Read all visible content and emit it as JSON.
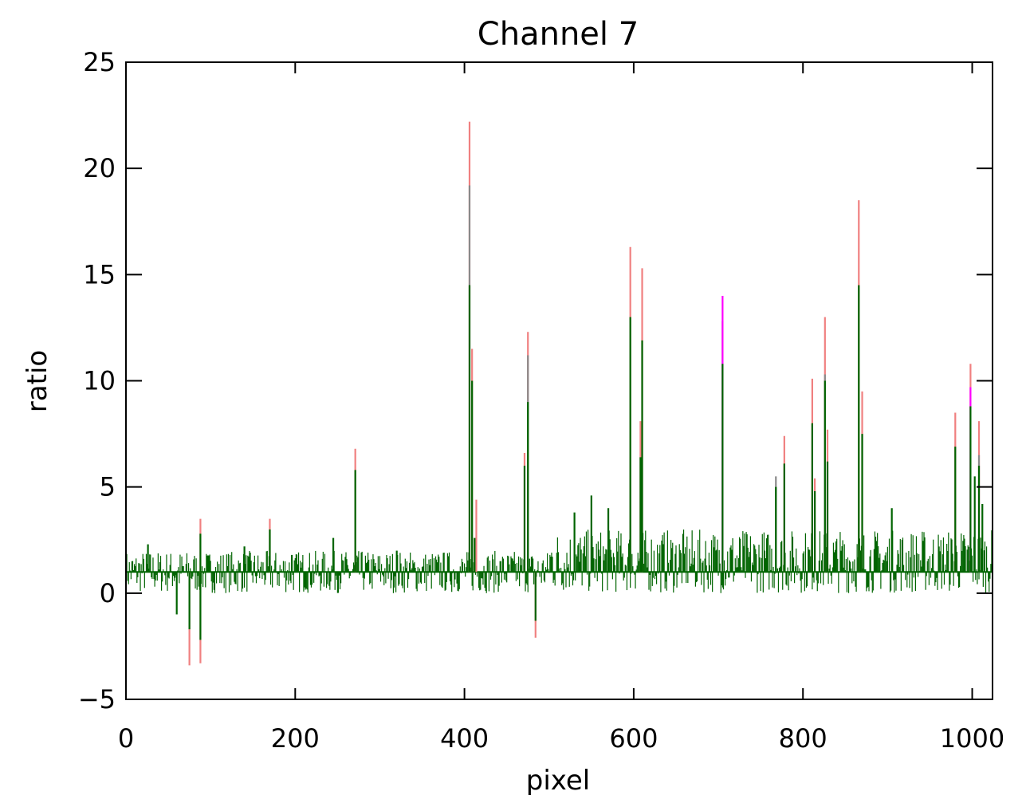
{
  "chart_data": {
    "type": "line",
    "title": "Channel 7",
    "xlabel": "pixel",
    "ylabel": "ratio",
    "xlim": [
      0,
      1024
    ],
    "ylim": [
      -5,
      25
    ],
    "x_ticks": [
      0,
      200,
      400,
      600,
      800,
      1000
    ],
    "x_tick_labels": [
      "0",
      "200",
      "400",
      "600",
      "800",
      "1000"
    ],
    "y_ticks": [
      -5,
      0,
      5,
      10,
      15,
      20,
      25
    ],
    "y_tick_labels": [
      "−5",
      "0",
      "5",
      "10",
      "15",
      "20",
      "25"
    ],
    "grid": false,
    "legend": "none",
    "baseline": 1.0,
    "colors": {
      "primary": "#006400",
      "overlay_1": "#f08080",
      "overlay_2": "#8a8a8a",
      "overlay_3": "#ff00ff",
      "axes": "#000000"
    },
    "noise_segments": [
      {
        "x_start": 0,
        "x_end": 500,
        "low": 0.0,
        "high": 2.0
      },
      {
        "x_start": 500,
        "x_end": 1024,
        "low": 0.0,
        "high": 3.0
      }
    ],
    "series": [
      {
        "color": "#006400",
        "spikes": [
          {
            "x": 26,
            "y": 2.3
          },
          {
            "x": 60,
            "y": -1.0
          },
          {
            "x": 75,
            "y": -1.7
          },
          {
            "x": 88,
            "y": 2.8
          },
          {
            "x": 88,
            "y": -2.2
          },
          {
            "x": 140,
            "y": 2.2
          },
          {
            "x": 170,
            "y": 3.0
          },
          {
            "x": 196,
            "y": 1.8
          },
          {
            "x": 245,
            "y": 2.6
          },
          {
            "x": 271,
            "y": 5.8
          },
          {
            "x": 320,
            "y": 2.0
          },
          {
            "x": 406,
            "y": 14.5
          },
          {
            "x": 409,
            "y": 10.0
          },
          {
            "x": 412,
            "y": 2.6
          },
          {
            "x": 471,
            "y": 6.0
          },
          {
            "x": 475,
            "y": 9.0
          },
          {
            "x": 484,
            "y": -1.3
          },
          {
            "x": 530,
            "y": 3.8
          },
          {
            "x": 550,
            "y": 4.6
          },
          {
            "x": 570,
            "y": 4.0
          },
          {
            "x": 596,
            "y": 13.0
          },
          {
            "x": 610,
            "y": 11.9
          },
          {
            "x": 608,
            "y": 6.4
          },
          {
            "x": 705,
            "y": 10.8
          },
          {
            "x": 768,
            "y": 5.0
          },
          {
            "x": 778,
            "y": 6.1
          },
          {
            "x": 811,
            "y": 8.0
          },
          {
            "x": 814,
            "y": 4.8
          },
          {
            "x": 826,
            "y": 10.0
          },
          {
            "x": 829,
            "y": 6.2
          },
          {
            "x": 866,
            "y": 14.5
          },
          {
            "x": 870,
            "y": 7.5
          },
          {
            "x": 905,
            "y": 4.0
          },
          {
            "x": 980,
            "y": 6.9
          },
          {
            "x": 998,
            "y": 8.8
          },
          {
            "x": 1003,
            "y": 5.5
          },
          {
            "x": 1008,
            "y": 6.0
          },
          {
            "x": 1012,
            "y": 4.2
          }
        ]
      },
      {
        "color": "#f08080",
        "spikes": [
          {
            "x": 75,
            "y": -3.4
          },
          {
            "x": 88,
            "y": -3.3
          },
          {
            "x": 88,
            "y": 3.5
          },
          {
            "x": 170,
            "y": 3.5
          },
          {
            "x": 271,
            "y": 6.8
          },
          {
            "x": 406,
            "y": 22.2
          },
          {
            "x": 409,
            "y": 11.5
          },
          {
            "x": 414,
            "y": 4.4
          },
          {
            "x": 471,
            "y": 6.6
          },
          {
            "x": 475,
            "y": 12.3
          },
          {
            "x": 484,
            "y": -2.1
          },
          {
            "x": 596,
            "y": 16.3
          },
          {
            "x": 610,
            "y": 15.3
          },
          {
            "x": 608,
            "y": 8.1
          },
          {
            "x": 778,
            "y": 7.4
          },
          {
            "x": 811,
            "y": 10.1
          },
          {
            "x": 814,
            "y": 5.4
          },
          {
            "x": 826,
            "y": 13.0
          },
          {
            "x": 829,
            "y": 7.7
          },
          {
            "x": 866,
            "y": 18.5
          },
          {
            "x": 870,
            "y": 9.5
          },
          {
            "x": 980,
            "y": 8.5
          },
          {
            "x": 998,
            "y": 10.8
          },
          {
            "x": 1008,
            "y": 8.1
          }
        ]
      },
      {
        "color": "#8a8a8a",
        "spikes": [
          {
            "x": 406,
            "y": 19.2
          },
          {
            "x": 475,
            "y": 11.2
          },
          {
            "x": 705,
            "y": 12.8
          },
          {
            "x": 768,
            "y": 5.5
          },
          {
            "x": 826,
            "y": 10.3
          },
          {
            "x": 1008,
            "y": 6.5
          }
        ]
      },
      {
        "color": "#ff00ff",
        "spikes": [
          {
            "x": 705,
            "y": 14.0
          },
          {
            "x": 998,
            "y": 9.7
          }
        ]
      }
    ]
  }
}
